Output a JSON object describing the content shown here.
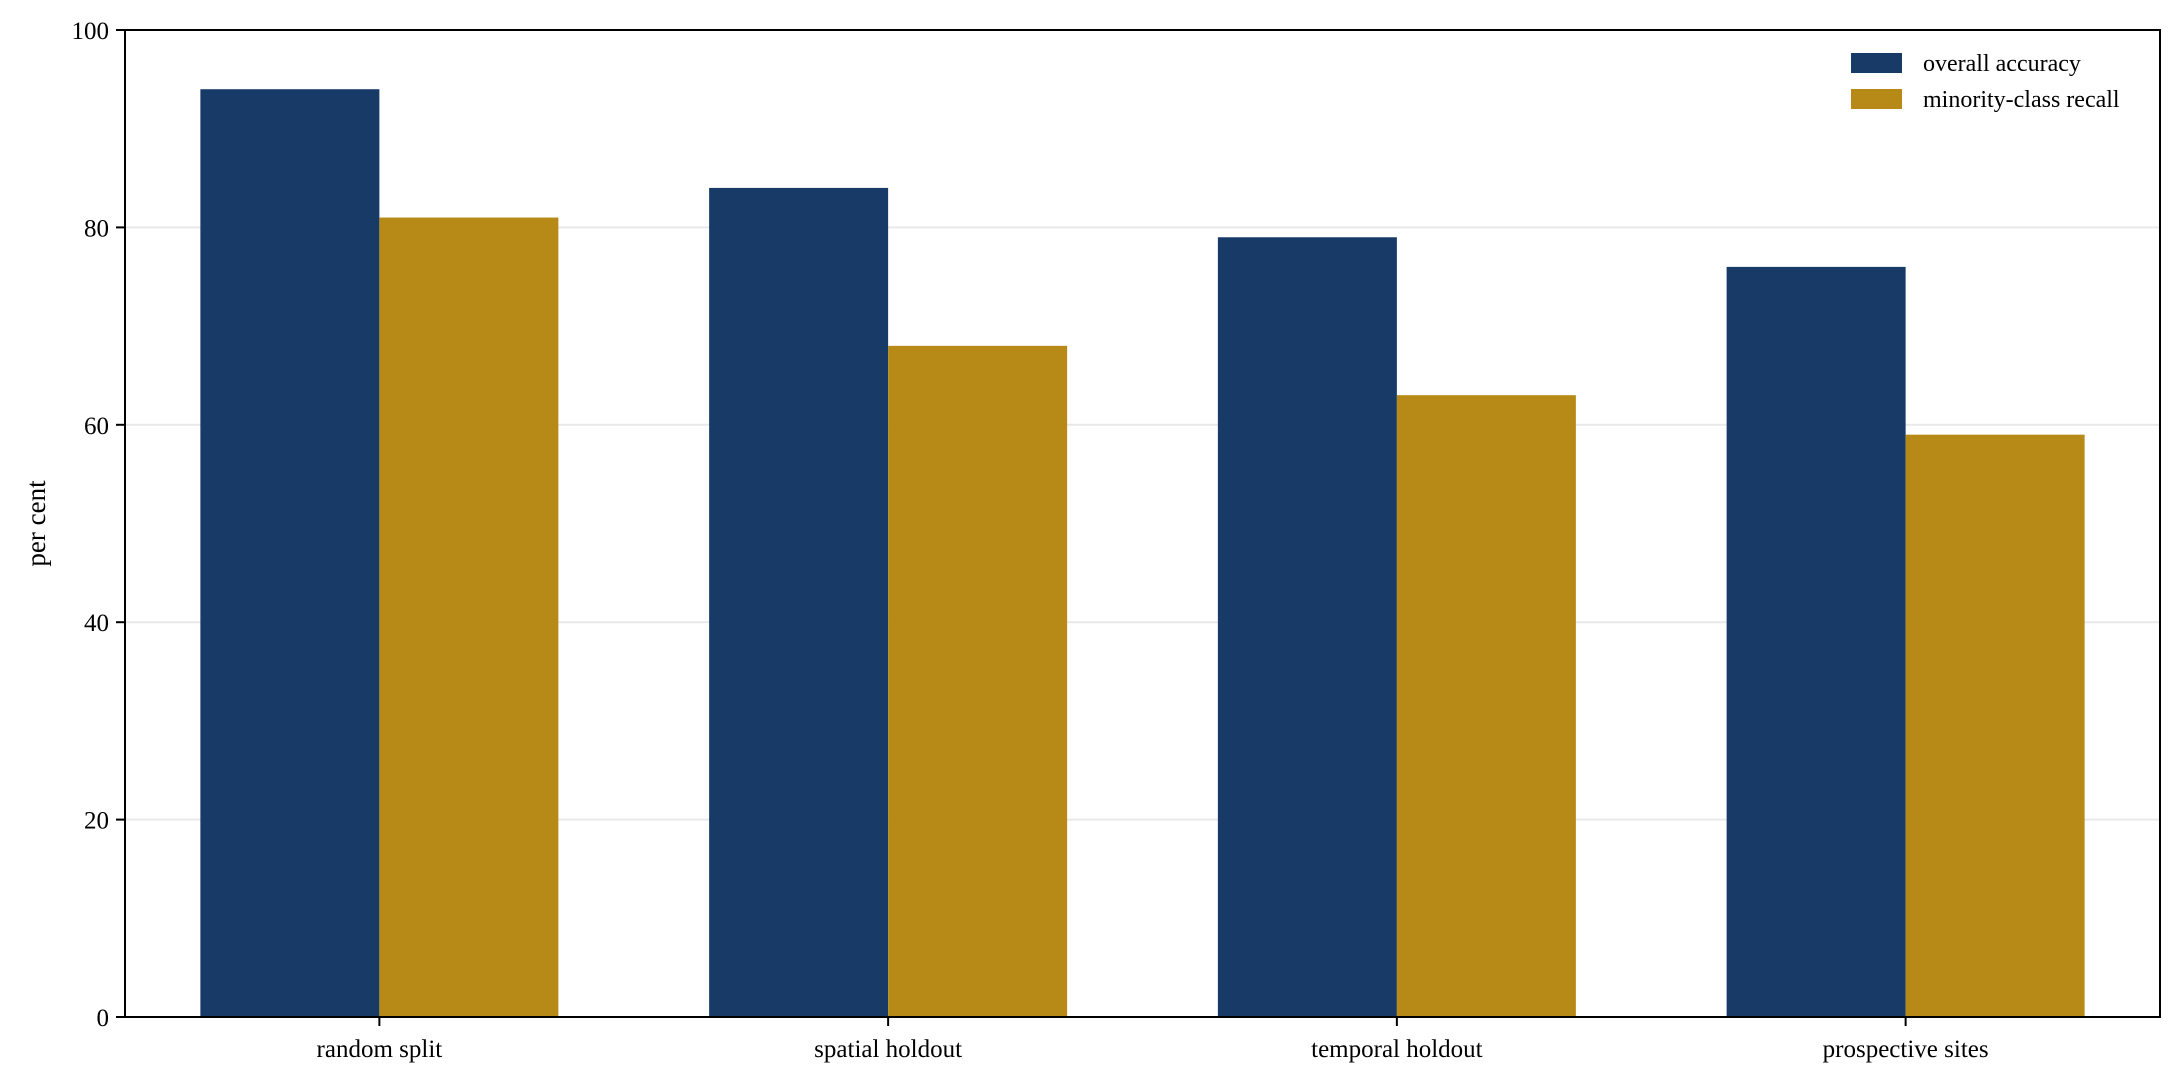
{
  "chart_data": {
    "type": "bar",
    "title": "",
    "xlabel": "",
    "ylabel": "per cent",
    "ylim": [
      0,
      100
    ],
    "yticks": [
      0,
      20,
      40,
      60,
      80,
      100
    ],
    "grid": "horizontal",
    "legend_position": "top-right",
    "categories": [
      "random split",
      "spatial holdout",
      "temporal holdout",
      "prospective sites"
    ],
    "series": [
      {
        "name": "overall accuracy",
        "color": "#173a67",
        "values": [
          94,
          84,
          79,
          76
        ]
      },
      {
        "name": "minority-class recall",
        "color": "#b78a18",
        "values": [
          81,
          68,
          63,
          59
        ]
      }
    ]
  }
}
